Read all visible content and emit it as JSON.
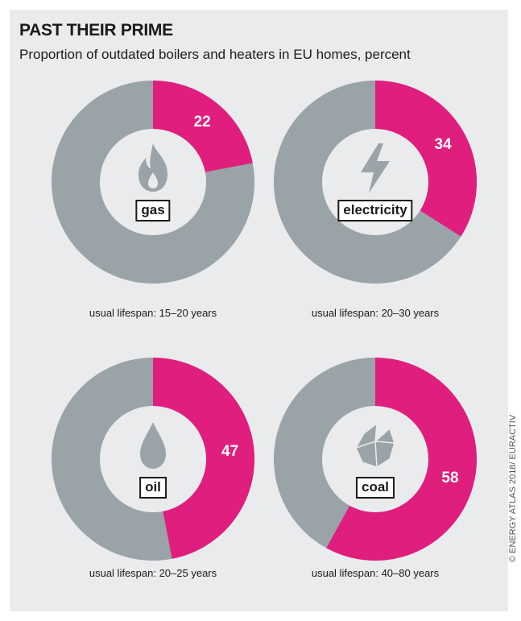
{
  "title": "PAST THEIR PRIME",
  "subtitle": "Proportion of outdated boilers and heaters in EU homes, percent",
  "credit": "© ENERGY ATLAS 2018/ EURACTIV",
  "colors": {
    "outdated": "#e01e7e",
    "remaining": "#9aa3a8",
    "icon": "#9aa3a8",
    "background": "#eaebed"
  },
  "chart_data": {
    "type": "pie",
    "charts": [
      {
        "fuel": "gas",
        "value": 22,
        "lifespan": "usual lifespan: 15–20 years",
        "icon": "flame-icon"
      },
      {
        "fuel": "electricity",
        "value": 34,
        "lifespan": "usual lifespan: 20–30 years",
        "icon": "lightning-bolt-icon"
      },
      {
        "fuel": "oil",
        "value": 47,
        "lifespan": "usual lifespan: 20–25 years",
        "icon": "oil-drop-icon"
      },
      {
        "fuel": "coal",
        "value": 58,
        "lifespan": "usual lifespan: 40–80 years",
        "icon": "coal-lump-icon"
      }
    ]
  }
}
